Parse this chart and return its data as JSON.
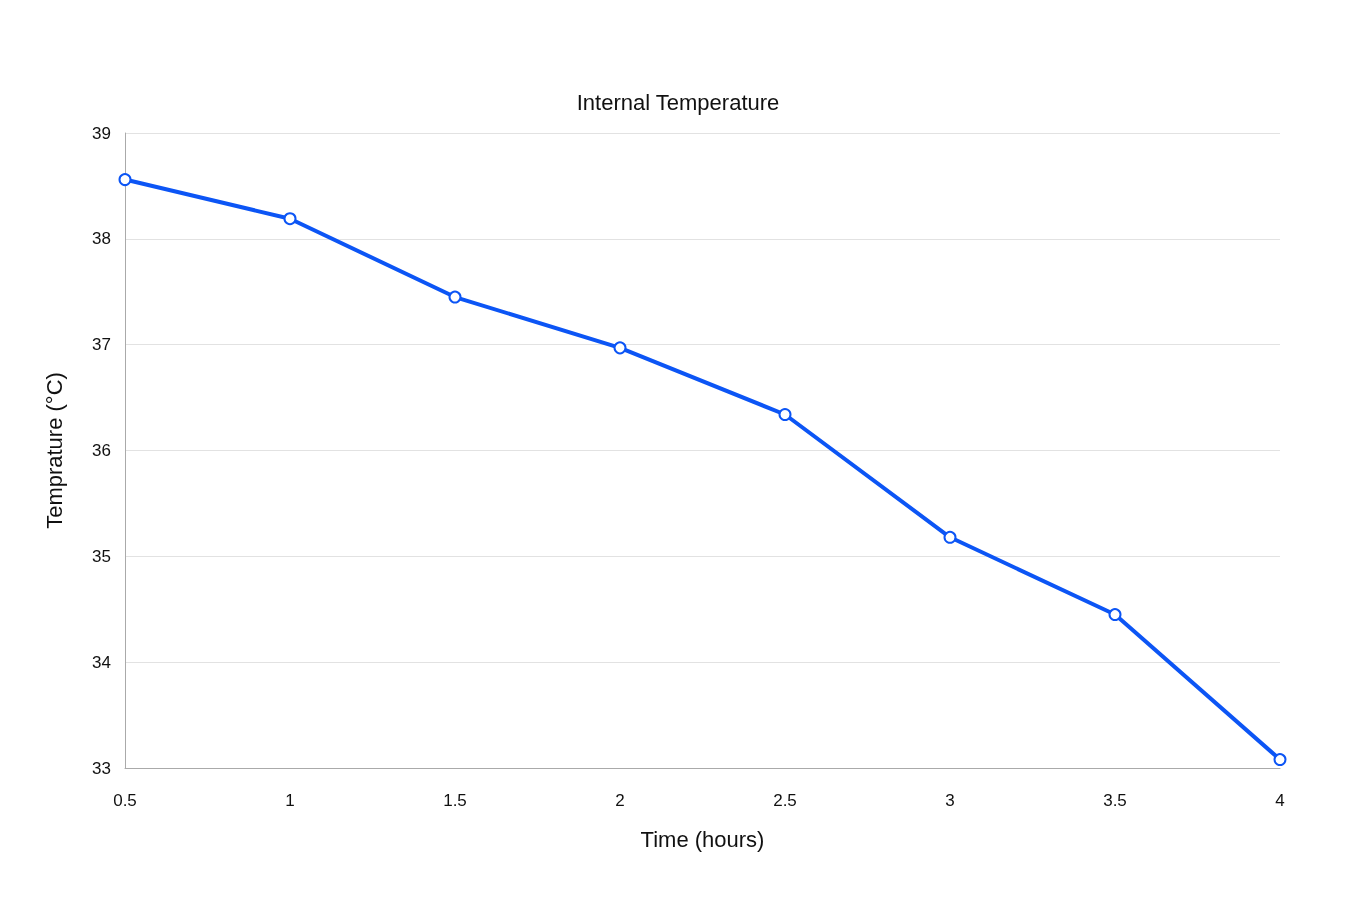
{
  "chart_data": {
    "type": "line",
    "title": "Internal Temperature",
    "xlabel": "Time (hours)",
    "ylabel": "Temprature (°C)",
    "x": [
      0.5,
      1,
      1.5,
      2,
      2.5,
      3,
      3.5,
      4
    ],
    "series": [
      {
        "color": "#0c55f5",
        "values": [
          38.56,
          38.19,
          37.45,
          36.97,
          36.34,
          35.18,
          34.45,
          33.08
        ]
      }
    ],
    "xlim": [
      0.5,
      4
    ],
    "xticks": [
      0.5,
      1,
      1.5,
      2,
      2.5,
      3,
      3.5,
      4
    ],
    "ylim": [
      33,
      39
    ],
    "yticks": [
      33,
      34,
      35,
      36,
      37,
      38,
      39
    ],
    "grid": "y",
    "marker": "circle",
    "line_style": "solid"
  }
}
